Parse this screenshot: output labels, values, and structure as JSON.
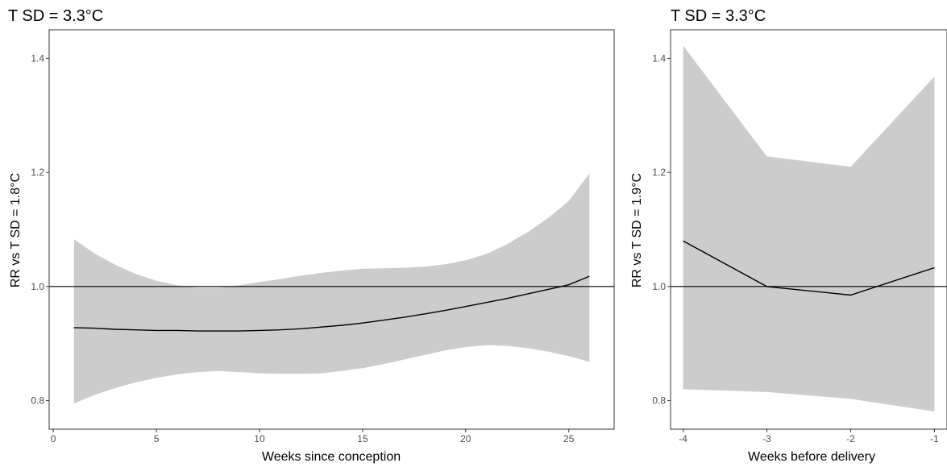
{
  "chart_data": [
    {
      "type": "line",
      "title": "T SD = 3.3°C",
      "xlabel": "Weeks since conception",
      "ylabel": "RR vs T SD = 1.8°C",
      "xlim": [
        -0.2,
        27.2
      ],
      "ylim": [
        0.75,
        1.45
      ],
      "xticks": [
        0,
        5,
        10,
        15,
        20,
        25
      ],
      "xtick_labels": [
        "0",
        "5",
        "10",
        "15",
        "20",
        "25"
      ],
      "yticks": [
        0.8,
        1.0,
        1.2,
        1.4
      ],
      "ytick_labels": [
        "0.8",
        "1.0",
        "1.2",
        "1.4"
      ],
      "reference_line": 1.0,
      "grid": false,
      "line_color": "#000000",
      "band_color": "#cccccc",
      "x": [
        1,
        2,
        3,
        4,
        5,
        6,
        7,
        8,
        9,
        10,
        11,
        12,
        13,
        14,
        15,
        16,
        17,
        18,
        19,
        20,
        21,
        22,
        23,
        24,
        25,
        26
      ],
      "estimate": [
        0.928,
        0.927,
        0.925,
        0.924,
        0.923,
        0.923,
        0.922,
        0.922,
        0.922,
        0.923,
        0.924,
        0.926,
        0.929,
        0.932,
        0.936,
        0.941,
        0.946,
        0.952,
        0.958,
        0.965,
        0.972,
        0.979,
        0.987,
        0.995,
        1.003,
        1.018
      ],
      "lower": [
        0.795,
        0.81,
        0.822,
        0.832,
        0.84,
        0.846,
        0.85,
        0.852,
        0.85,
        0.848,
        0.847,
        0.847,
        0.848,
        0.852,
        0.857,
        0.864,
        0.872,
        0.88,
        0.888,
        0.894,
        0.897,
        0.896,
        0.892,
        0.886,
        0.878,
        0.868
      ],
      "upper": [
        1.083,
        1.058,
        1.038,
        1.022,
        1.01,
        1.002,
        0.998,
        0.998,
        1.002,
        1.008,
        1.013,
        1.019,
        1.024,
        1.028,
        1.031,
        1.032,
        1.033,
        1.035,
        1.039,
        1.046,
        1.057,
        1.074,
        1.095,
        1.12,
        1.15,
        1.198
      ]
    },
    {
      "type": "line",
      "title": "T SD = 3.3°C",
      "xlabel": "Weeks before delivery",
      "ylabel": "RR vs T SD = 1.9°C",
      "xlim": [
        -4.15,
        -0.85
      ],
      "ylim": [
        0.75,
        1.45
      ],
      "xticks": [
        -4,
        -3,
        -2,
        -1
      ],
      "xtick_labels": [
        "-4",
        "-3",
        "-2",
        "-1"
      ],
      "yticks": [
        0.8,
        1.0,
        1.2,
        1.4
      ],
      "ytick_labels": [
        "0.8",
        "1.0",
        "1.2",
        "1.4"
      ],
      "reference_line": 1.0,
      "grid": false,
      "line_color": "#000000",
      "band_color": "#cccccc",
      "x": [
        -4,
        -3,
        -2,
        -1
      ],
      "estimate": [
        1.08,
        1.0,
        0.985,
        1.033
      ],
      "lower": [
        0.82,
        0.815,
        0.803,
        0.781
      ],
      "upper": [
        1.422,
        1.228,
        1.21,
        1.368
      ]
    }
  ]
}
